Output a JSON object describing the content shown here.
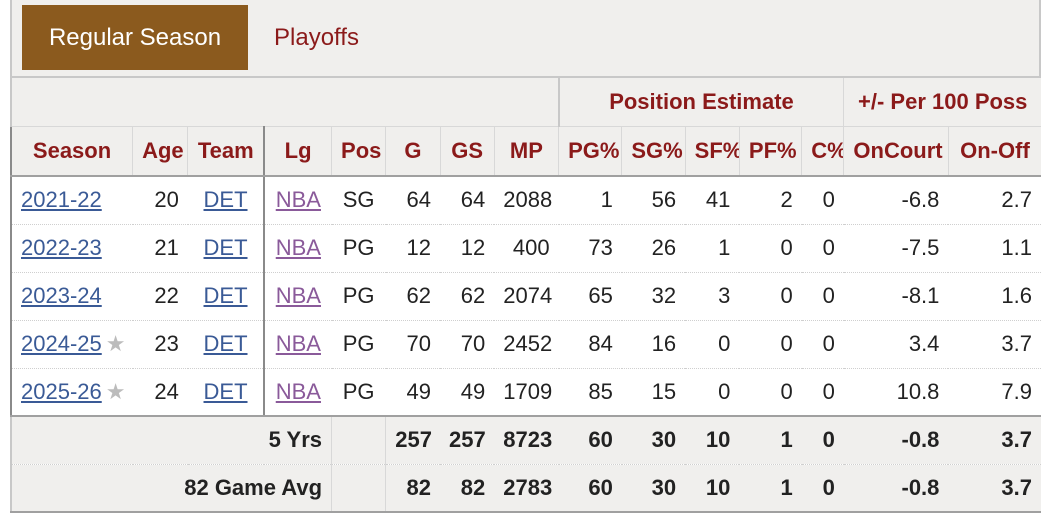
{
  "tabs": {
    "regular": "Regular Season",
    "playoffs": "Playoffs"
  },
  "over_header": {
    "position_estimate": "Position Estimate",
    "plus_minus": "+/- Per 100 Poss"
  },
  "columns": [
    "Season",
    "Age",
    "Team",
    "Lg",
    "Pos",
    "G",
    "GS",
    "MP",
    "PG%",
    "SG%",
    "SF%",
    "PF%",
    "C%",
    "OnCourt",
    "On-Off"
  ],
  "rows": [
    {
      "season": "2021-22",
      "age": "20",
      "team": "DET",
      "lg": "NBA",
      "pos": "SG",
      "g": "64",
      "gs": "64",
      "mp": "2088",
      "pg": "1",
      "sg": "56",
      "sf": "41",
      "pf": "2",
      "c": "0",
      "oncourt": "-6.8",
      "onoff": "2.7",
      "star": ""
    },
    {
      "season": "2022-23",
      "age": "21",
      "team": "DET",
      "lg": "NBA",
      "pos": "PG",
      "g": "12",
      "gs": "12",
      "mp": "400",
      "pg": "73",
      "sg": "26",
      "sf": "1",
      "pf": "0",
      "c": "0",
      "oncourt": "-7.5",
      "onoff": "1.1",
      "star": ""
    },
    {
      "season": "2023-24",
      "age": "22",
      "team": "DET",
      "lg": "NBA",
      "pos": "PG",
      "g": "62",
      "gs": "62",
      "mp": "2074",
      "pg": "65",
      "sg": "32",
      "sf": "3",
      "pf": "0",
      "c": "0",
      "oncourt": "-8.1",
      "onoff": "1.6",
      "star": ""
    },
    {
      "season": "2024-25",
      "age": "23",
      "team": "DET",
      "lg": "NBA",
      "pos": "PG",
      "g": "70",
      "gs": "70",
      "mp": "2452",
      "pg": "84",
      "sg": "16",
      "sf": "0",
      "pf": "0",
      "c": "0",
      "oncourt": "3.4",
      "onoff": "3.7",
      "star": "★"
    },
    {
      "season": "2025-26",
      "age": "24",
      "team": "DET",
      "lg": "NBA",
      "pos": "PG",
      "g": "49",
      "gs": "49",
      "mp": "1709",
      "pg": "85",
      "sg": "15",
      "sf": "0",
      "pf": "0",
      "c": "0",
      "oncourt": "10.8",
      "onoff": "7.9",
      "star": "★"
    }
  ],
  "totals": [
    {
      "label": "5 Yrs",
      "g": "257",
      "gs": "257",
      "mp": "8723",
      "pg": "60",
      "sg": "30",
      "sf": "10",
      "pf": "1",
      "c": "0",
      "oncourt": "-0.8",
      "onoff": "3.7"
    },
    {
      "label": "82 Game Avg",
      "g": "82",
      "gs": "82",
      "mp": "2783",
      "pg": "60",
      "sg": "30",
      "sf": "10",
      "pf": "1",
      "c": "0",
      "oncourt": "-0.8",
      "onoff": "3.7"
    }
  ],
  "colors": {
    "accent_tab": "#8b5a1e",
    "header_text": "#8b1a1a",
    "negative": "#9a2020",
    "positive": "#3a8a2a",
    "link": "#3a5a96",
    "league_link": "#8a5a9a"
  }
}
